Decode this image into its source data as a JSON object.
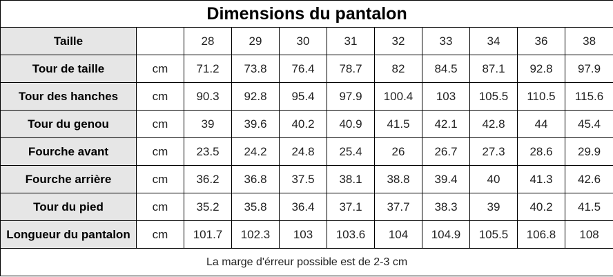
{
  "title": "Dimensions du pantalon",
  "table": {
    "size_label": "Taille",
    "sizes": [
      "28",
      "29",
      "30",
      "31",
      "32",
      "33",
      "34",
      "36",
      "38"
    ],
    "rows": [
      {
        "label": "Tour de taille",
        "unit": "cm",
        "values": [
          "71.2",
          "73.8",
          "76.4",
          "78.7",
          "82",
          "84.5",
          "87.1",
          "92.8",
          "97.9"
        ]
      },
      {
        "label": "Tour des hanches",
        "unit": "cm",
        "values": [
          "90.3",
          "92.8",
          "95.4",
          "97.9",
          "100.4",
          "103",
          "105.5",
          "110.5",
          "115.6"
        ]
      },
      {
        "label": "Tour du genou",
        "unit": "cm",
        "values": [
          "39",
          "39.6",
          "40.2",
          "40.9",
          "41.5",
          "42.1",
          "42.8",
          "44",
          "45.4"
        ]
      },
      {
        "label": "Fourche avant",
        "unit": "cm",
        "values": [
          "23.5",
          "24.2",
          "24.8",
          "25.4",
          "26",
          "26.7",
          "27.3",
          "28.6",
          "29.9"
        ]
      },
      {
        "label": "Fourche arrière",
        "unit": "cm",
        "values": [
          "36.2",
          "36.8",
          "37.5",
          "38.1",
          "38.8",
          "39.4",
          "40",
          "41.3",
          "42.6"
        ]
      },
      {
        "label": "Tour du pied",
        "unit": "cm",
        "values": [
          "35.2",
          "35.8",
          "36.4",
          "37.1",
          "37.7",
          "38.3",
          "39",
          "40.2",
          "41.5"
        ]
      },
      {
        "label": "Longueur du pantalon",
        "unit": "cm",
        "values": [
          "101.7",
          "102.3",
          "103",
          "103.6",
          "104",
          "104.9",
          "105.5",
          "106.8",
          "108"
        ]
      }
    ]
  },
  "note": "La marge d'érreur possible est de 2-3 cm"
}
